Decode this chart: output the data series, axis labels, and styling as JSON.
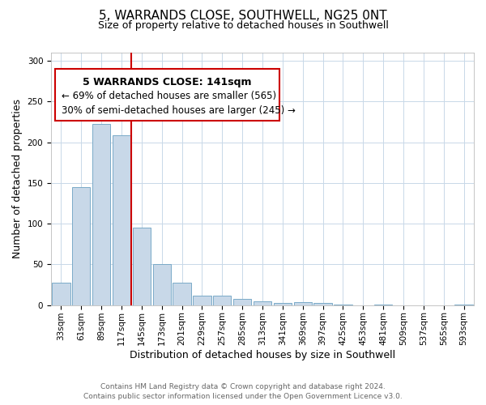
{
  "title": "5, WARRANDS CLOSE, SOUTHWELL, NG25 0NT",
  "subtitle": "Size of property relative to detached houses in Southwell",
  "xlabel": "Distribution of detached houses by size in Southwell",
  "ylabel": "Number of detached properties",
  "footnote1": "Contains HM Land Registry data © Crown copyright and database right 2024.",
  "footnote2": "Contains public sector information licensed under the Open Government Licence v3.0.",
  "bar_labels": [
    "33sqm",
    "61sqm",
    "89sqm",
    "117sqm",
    "145sqm",
    "173sqm",
    "201sqm",
    "229sqm",
    "257sqm",
    "285sqm",
    "313sqm",
    "341sqm",
    "369sqm",
    "397sqm",
    "425sqm",
    "453sqm",
    "481sqm",
    "509sqm",
    "537sqm",
    "565sqm",
    "593sqm"
  ],
  "bar_values": [
    28,
    145,
    222,
    209,
    95,
    50,
    28,
    12,
    12,
    8,
    5,
    3,
    4,
    3,
    1,
    0,
    1,
    0,
    0,
    0,
    1
  ],
  "bar_color": "#c8d8e8",
  "bar_edge_color": "#7aaac8",
  "vline_color": "#cc0000",
  "ylim": [
    0,
    310
  ],
  "yticks": [
    0,
    50,
    100,
    150,
    200,
    250,
    300
  ],
  "annotation_title": "5 WARRANDS CLOSE: 141sqm",
  "annotation_line1": "← 69% of detached houses are smaller (565)",
  "annotation_line2": "30% of semi-detached houses are larger (245) →",
  "title_fontsize": 11,
  "subtitle_fontsize": 9,
  "annotation_title_fontsize": 9,
  "annotation_text_fontsize": 8.5,
  "axis_label_fontsize": 9,
  "tick_fontsize": 7.5,
  "footnote_fontsize": 6.5
}
